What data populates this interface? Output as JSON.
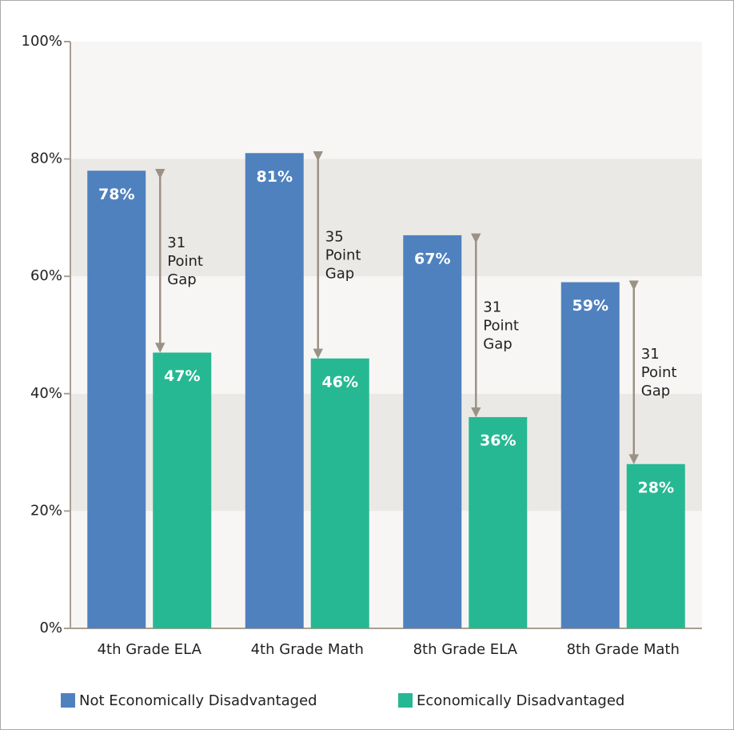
{
  "chart_data": {
    "type": "bar",
    "categories": [
      "4th Grade ELA",
      "4th Grade Math",
      "8th Grade ELA",
      "8th Grade Math"
    ],
    "series": [
      {
        "name": "Not Economically Disadvantaged",
        "color": "#4f81bf",
        "values": [
          78,
          81,
          67,
          59
        ],
        "value_labels": [
          "78%",
          "81%",
          "67%",
          "59%"
        ]
      },
      {
        "name": "Economically Disadvantaged",
        "color": "#26b893",
        "values": [
          47,
          46,
          36,
          28
        ],
        "value_labels": [
          "47%",
          "46%",
          "36%",
          "28%"
        ]
      }
    ],
    "annotations": [
      [
        "31",
        "Point",
        "Gap"
      ],
      [
        "35",
        "Point",
        "Gap"
      ],
      [
        "31",
        "Point",
        "Gap"
      ],
      [
        "31",
        "Point",
        "Gap"
      ]
    ],
    "ylim": [
      0,
      100
    ],
    "yticks": [
      {
        "value": 0,
        "label": "0%"
      },
      {
        "value": 20,
        "label": "20%"
      },
      {
        "value": 40,
        "label": "40%"
      },
      {
        "value": 60,
        "label": "60%"
      },
      {
        "value": 80,
        "label": "80%"
      },
      {
        "value": 100,
        "label": "100%"
      }
    ],
    "grid": "bands",
    "legend": "bottom"
  }
}
